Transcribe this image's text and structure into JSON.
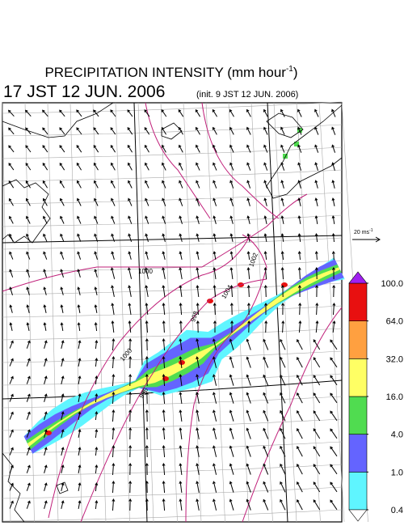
{
  "title": {
    "main": "PRECIPITATION INTENSITY (mm hour",
    "sup": "-1",
    "close": ")"
  },
  "valid_time": "17 JST 12 JUN. 2006",
  "init_time": "(init. 9 JST 12 JUN. 2006)",
  "wind_reference": {
    "label": "20 ms",
    "sup": "-1"
  },
  "isobar_labels": [
    "1000",
    "1004",
    "1002",
    "998",
    "1000",
    "996"
  ],
  "colorbar": {
    "levels": [
      {
        "value": 0.4,
        "label": "0.4"
      },
      {
        "value": 1,
        "label": "1.0"
      },
      {
        "value": 4,
        "label": "4.0"
      },
      {
        "value": 16,
        "label": "16.0"
      },
      {
        "value": 32,
        "label": "32.0"
      },
      {
        "value": 64,
        "label": "64.0"
      },
      {
        "value": 100,
        "label": "100.0"
      }
    ],
    "colors": [
      "#5ff5ff",
      "#6464ff",
      "#50dc50",
      "#ffff64",
      "#ffa040",
      "#e81010"
    ],
    "under_color": "#ffffff",
    "over_color": "#a020f0"
  }
}
